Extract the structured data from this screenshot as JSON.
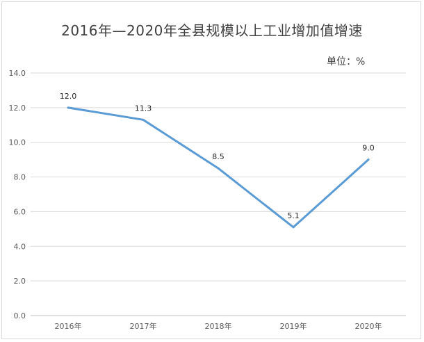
{
  "chart_data": {
    "type": "line",
    "title": "2016年—2020年全县规模以上工业增加值增速",
    "unit_label": "单位：%",
    "categories": [
      "2016年",
      "2017年",
      "2018年",
      "2019年",
      "2020年"
    ],
    "series": [
      {
        "values": [
          12.0,
          11.3,
          8.5,
          5.1,
          9.0
        ],
        "color": "#5b9bd5"
      }
    ],
    "data_labels": [
      "12.0",
      "11.3",
      "8.5",
      "5.1",
      "9.0"
    ],
    "ylim": [
      0,
      14
    ],
    "yticks": [
      "0.0",
      "2.0",
      "4.0",
      "6.0",
      "8.0",
      "10.0",
      "12.0",
      "14.0"
    ],
    "grid": true,
    "legend": "none"
  }
}
